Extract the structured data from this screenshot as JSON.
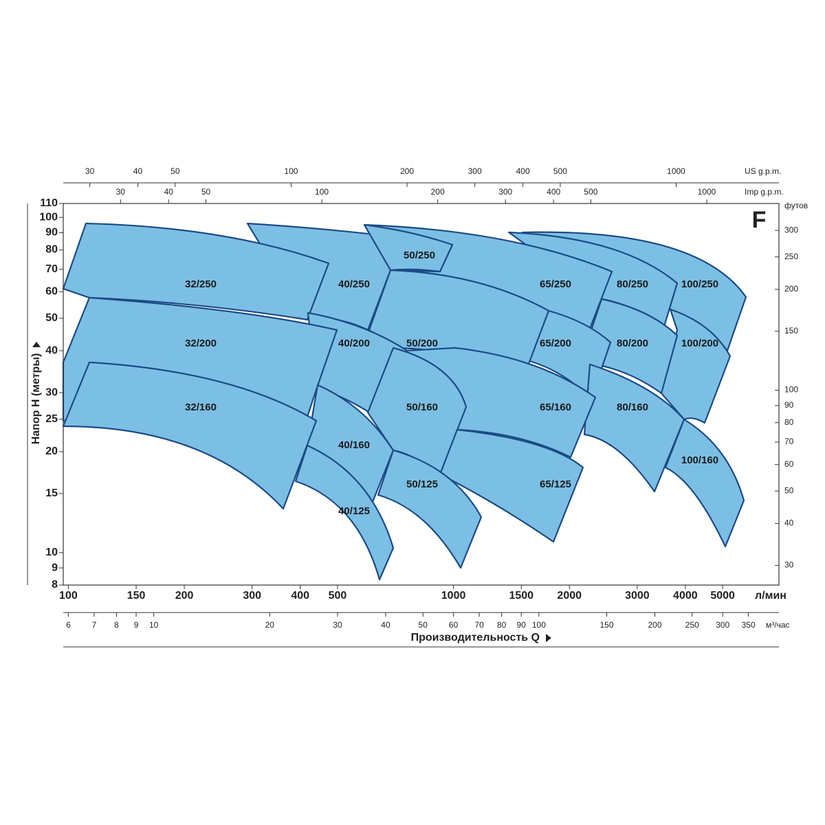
{
  "chart_data": {
    "type": "pump-ranges",
    "corner_letter": "F",
    "x_title": "Производительность Q",
    "y_title": "Напор H  (метры)",
    "log_scale": true,
    "x_lpm": {
      "unit": "л/мин",
      "lim": [
        97,
        7000
      ],
      "ticks": [
        100,
        150,
        200,
        300,
        400,
        500,
        1000,
        1500,
        2000,
        3000,
        4000,
        5000
      ]
    },
    "x_m3h": {
      "unit": "м³/час",
      "lim": [
        5.82,
        420
      ],
      "ticks": [
        6,
        7,
        8,
        9,
        10,
        20,
        30,
        40,
        50,
        60,
        70,
        80,
        90,
        100,
        150,
        200,
        250,
        300,
        350
      ]
    },
    "x_us_gpm": {
      "unit": "US g.p.m.",
      "lim": [
        25.6,
        1849
      ],
      "ticks": [
        30,
        40,
        50,
        100,
        200,
        300,
        400,
        500,
        1000
      ]
    },
    "x_imp_gpm": {
      "unit": "Imp g.p.m.",
      "lim": [
        21.3,
        1540
      ],
      "ticks": [
        30,
        40,
        50,
        100,
        200,
        300,
        400,
        500,
        1000
      ]
    },
    "y_m": {
      "lim": [
        8,
        110
      ],
      "ticks": [
        8,
        9,
        10,
        15,
        20,
        25,
        30,
        40,
        50,
        60,
        70,
        80,
        90,
        100,
        110
      ]
    },
    "y_ft": {
      "unit": "футов",
      "lim": [
        26.2,
        360.9
      ],
      "ticks": [
        30,
        40,
        50,
        60,
        70,
        80,
        90,
        100,
        150,
        200,
        250,
        300
      ]
    },
    "region_color": "#7cbfe4",
    "edge_color": "#1b4a86",
    "regions": [
      "32/250",
      "40/250",
      "50/250",
      "65/250",
      "80/250",
      "100/250",
      "32/200",
      "40/200",
      "50/200",
      "65/200",
      "80/200",
      "100/200",
      "32/160",
      "40/160",
      "50/160",
      "65/160",
      "80/160",
      "100/160",
      "40/125",
      "50/125",
      "65/125"
    ]
  }
}
